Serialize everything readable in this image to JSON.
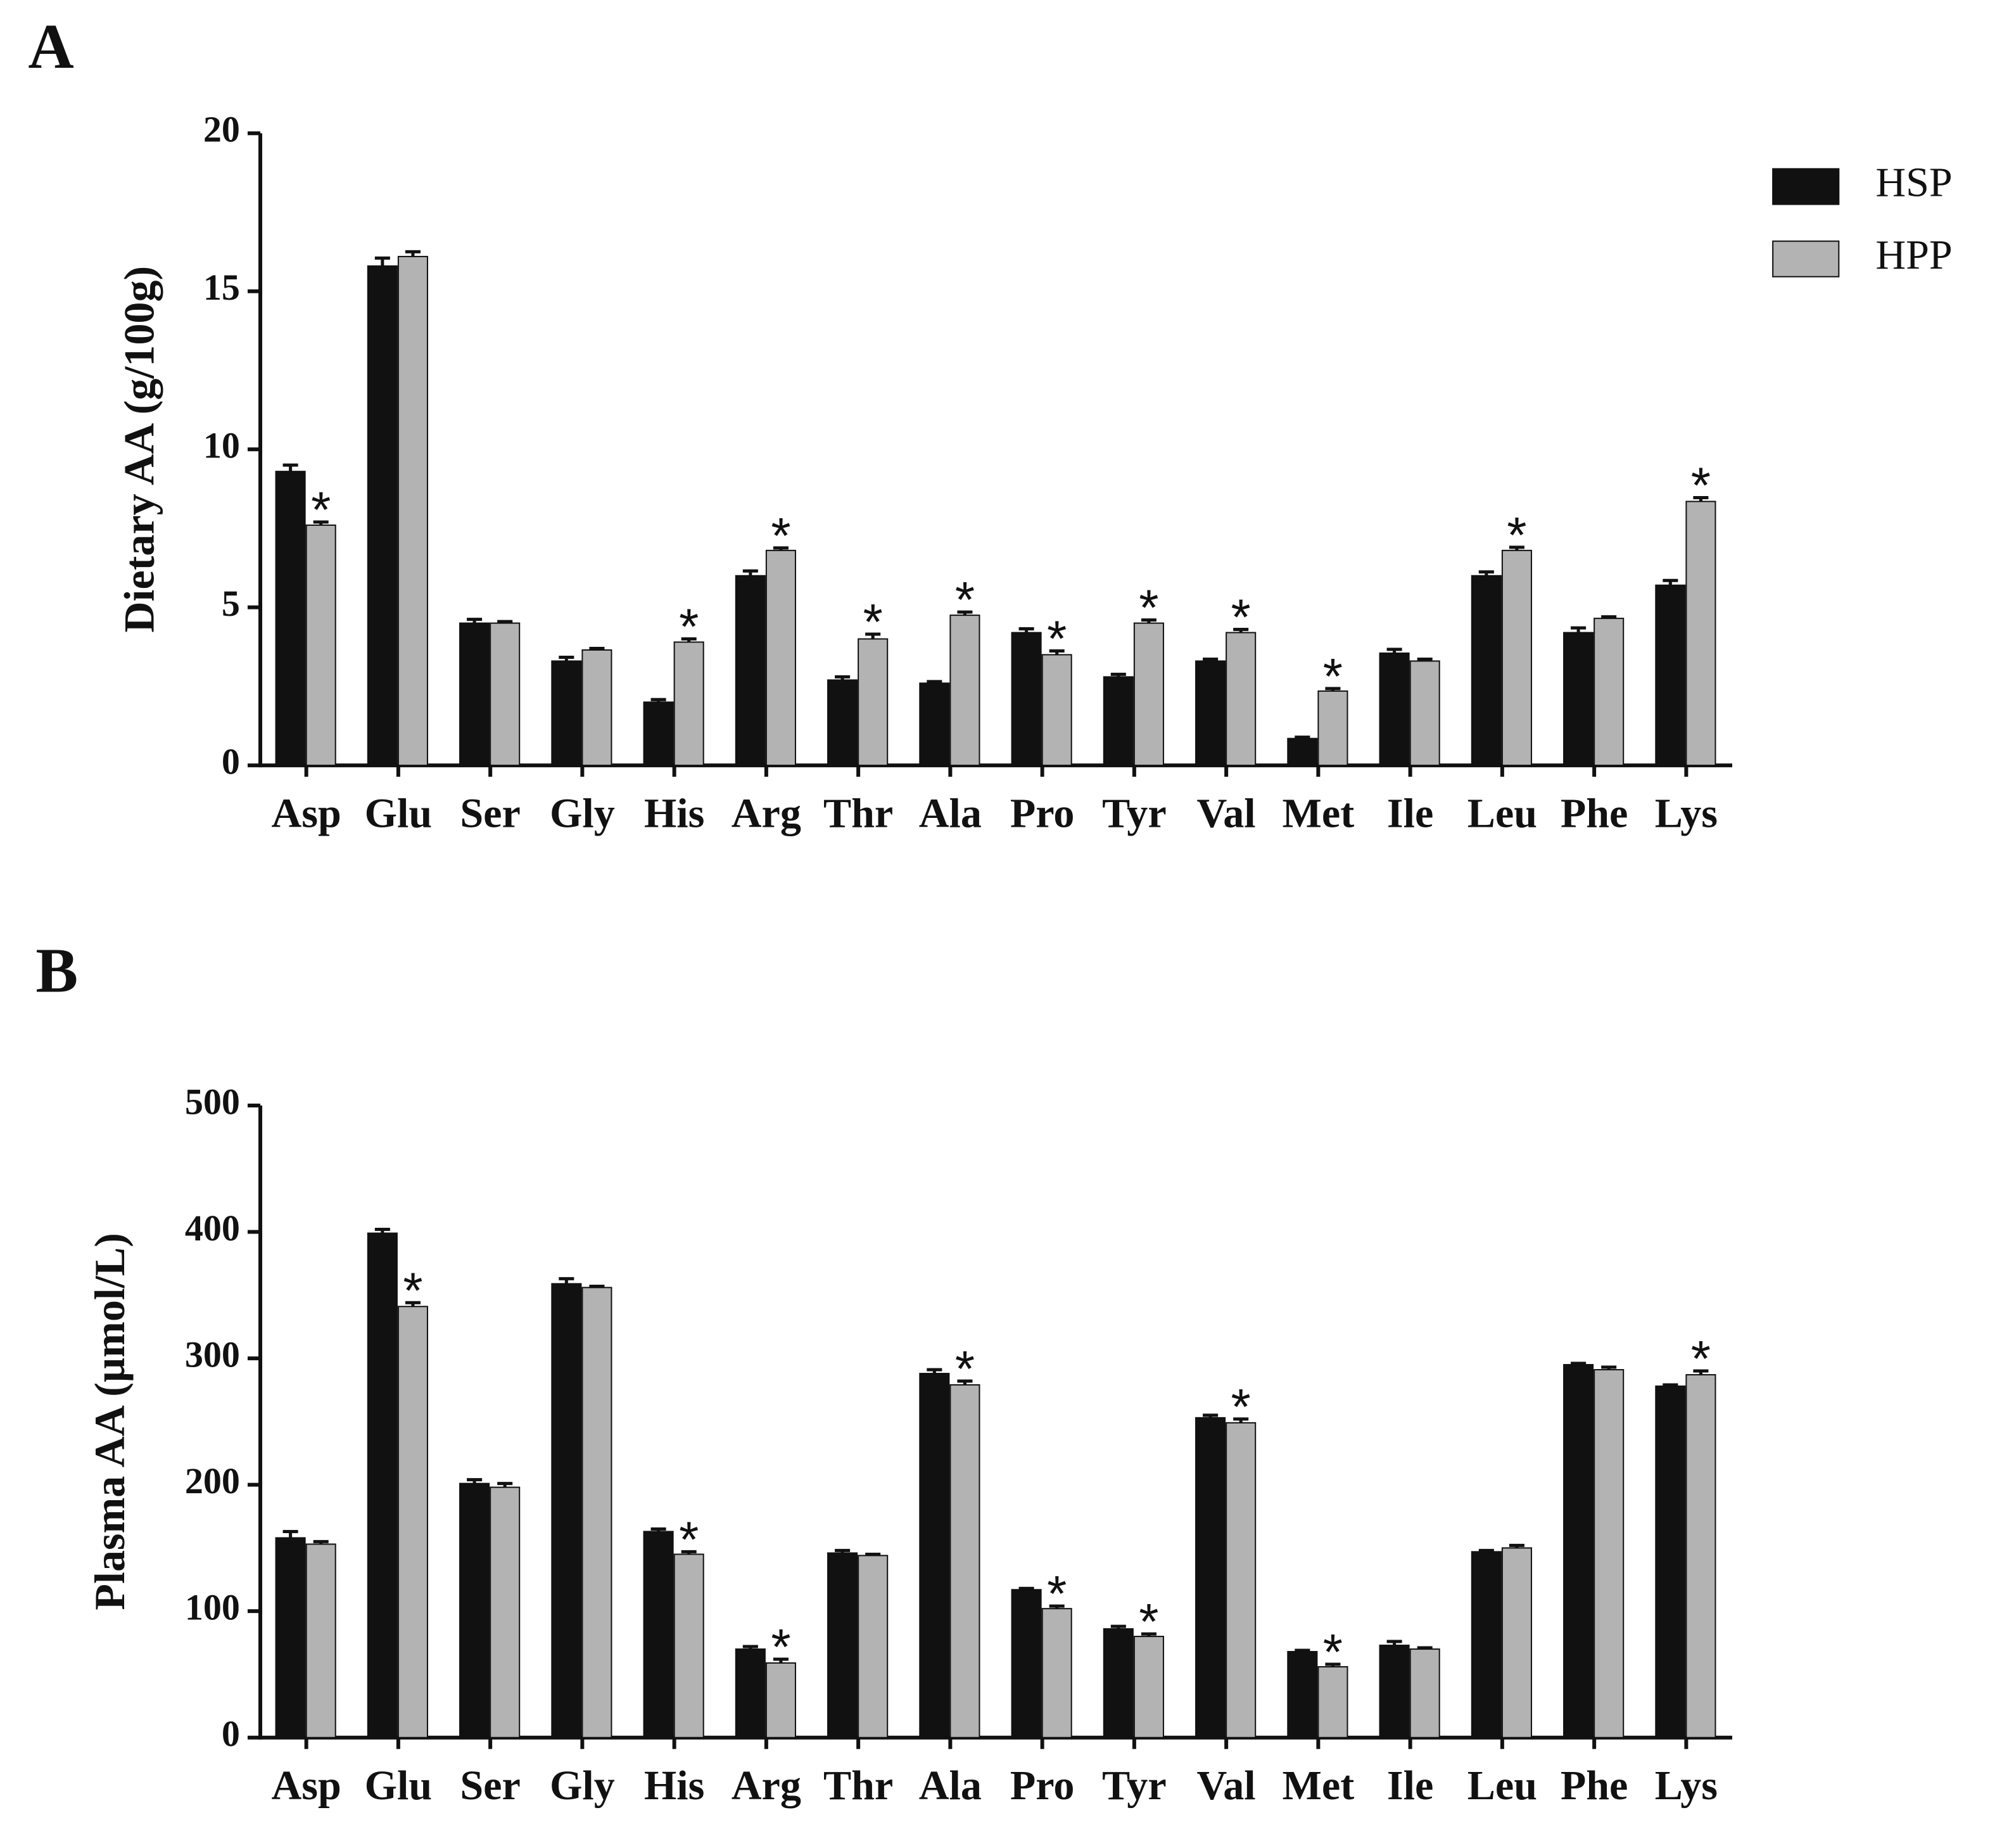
{
  "chart_data": [
    {
      "type": "bar",
      "panel": "A",
      "y_label": "Dietary AA (g/100g)",
      "categories": [
        "Asp",
        "Glu",
        "Ser",
        "Gly",
        "His",
        "Arg",
        "Thr",
        "Ala",
        "Pro",
        "Tyr",
        "Val",
        "Met",
        "Ile",
        "Leu",
        "Phe",
        "Lys"
      ],
      "ylim": [
        0,
        20
      ],
      "yticks": [
        0,
        5,
        10,
        15,
        20
      ],
      "legend": "top-right",
      "series": [
        {
          "name": "HSP",
          "color": "#111111",
          "values": [
            9.3,
            15.8,
            4.5,
            3.3,
            2.0,
            6.0,
            2.7,
            2.6,
            4.2,
            2.8,
            3.3,
            0.85,
            3.55,
            6.0,
            4.2,
            5.7
          ],
          "errors": [
            0.2,
            0.25,
            0.12,
            0.12,
            0.08,
            0.15,
            0.1,
            0.05,
            0.12,
            0.08,
            0.06,
            0.04,
            0.12,
            0.12,
            0.15,
            0.15
          ]
        },
        {
          "name": "HPP",
          "color": "#b3b3b3",
          "values": [
            7.6,
            16.1,
            4.5,
            3.65,
            3.9,
            6.8,
            4.0,
            4.75,
            3.5,
            4.5,
            4.2,
            2.35,
            3.3,
            6.8,
            4.65,
            8.35
          ],
          "errors": [
            0.1,
            0.15,
            0.05,
            0.05,
            0.1,
            0.08,
            0.15,
            0.1,
            0.12,
            0.1,
            0.1,
            0.08,
            0.06,
            0.1,
            0.05,
            0.12
          ],
          "annotations": [
            {
              "category": "Asp",
              "text": "*"
            },
            {
              "category": "His",
              "text": "*"
            },
            {
              "category": "Arg",
              "text": "*"
            },
            {
              "category": "Thr",
              "text": "*"
            },
            {
              "category": "Ala",
              "text": "*"
            },
            {
              "category": "Pro",
              "text": "*"
            },
            {
              "category": "Tyr",
              "text": "*"
            },
            {
              "category": "Val",
              "text": "*"
            },
            {
              "category": "Met",
              "text": "*"
            },
            {
              "category": "Leu",
              "text": "*"
            },
            {
              "category": "Lys",
              "text": "*"
            }
          ]
        }
      ]
    },
    {
      "type": "bar",
      "panel": "B",
      "y_label": "Plasma AA (µmol/L)",
      "categories": [
        "Asp",
        "Glu",
        "Ser",
        "Gly",
        "His",
        "Arg",
        "Thr",
        "Ala",
        "Pro",
        "Tyr",
        "Val",
        "Met",
        "Ile",
        "Leu",
        "Phe",
        "Lys"
      ],
      "ylim": [
        0,
        500
      ],
      "yticks": [
        0,
        100,
        200,
        300,
        400,
        500
      ],
      "series": [
        {
          "color": "#111111",
          "values": [
            158,
            399,
            201,
            359,
            163,
            70,
            146,
            288,
            117,
            86,
            253,
            68,
            73,
            147,
            295,
            278
          ],
          "errors": [
            5,
            3,
            3,
            4,
            2,
            2,
            2,
            3,
            1,
            2,
            2,
            1,
            3,
            1,
            1,
            1
          ]
        },
        {
          "color": "#b3b3b3",
          "values": [
            153,
            341,
            198,
            356,
            145,
            59,
            144,
            279,
            102,
            80,
            249,
            56,
            70,
            150,
            291,
            287
          ],
          "errors": [
            2,
            3,
            3,
            1,
            2,
            3,
            1,
            3,
            2,
            2,
            3,
            2,
            1,
            2,
            2,
            3
          ],
          "annotations": [
            {
              "category": "Glu",
              "text": "*"
            },
            {
              "category": "His",
              "text": "*"
            },
            {
              "category": "Arg",
              "text": "*"
            },
            {
              "category": "Ala",
              "text": "*"
            },
            {
              "category": "Pro",
              "text": "*"
            },
            {
              "category": "Tyr",
              "text": "*"
            },
            {
              "category": "Val",
              "text": "*"
            },
            {
              "category": "Met",
              "text": "*"
            },
            {
              "category": "Lys",
              "text": "*"
            }
          ]
        }
      ]
    }
  ]
}
